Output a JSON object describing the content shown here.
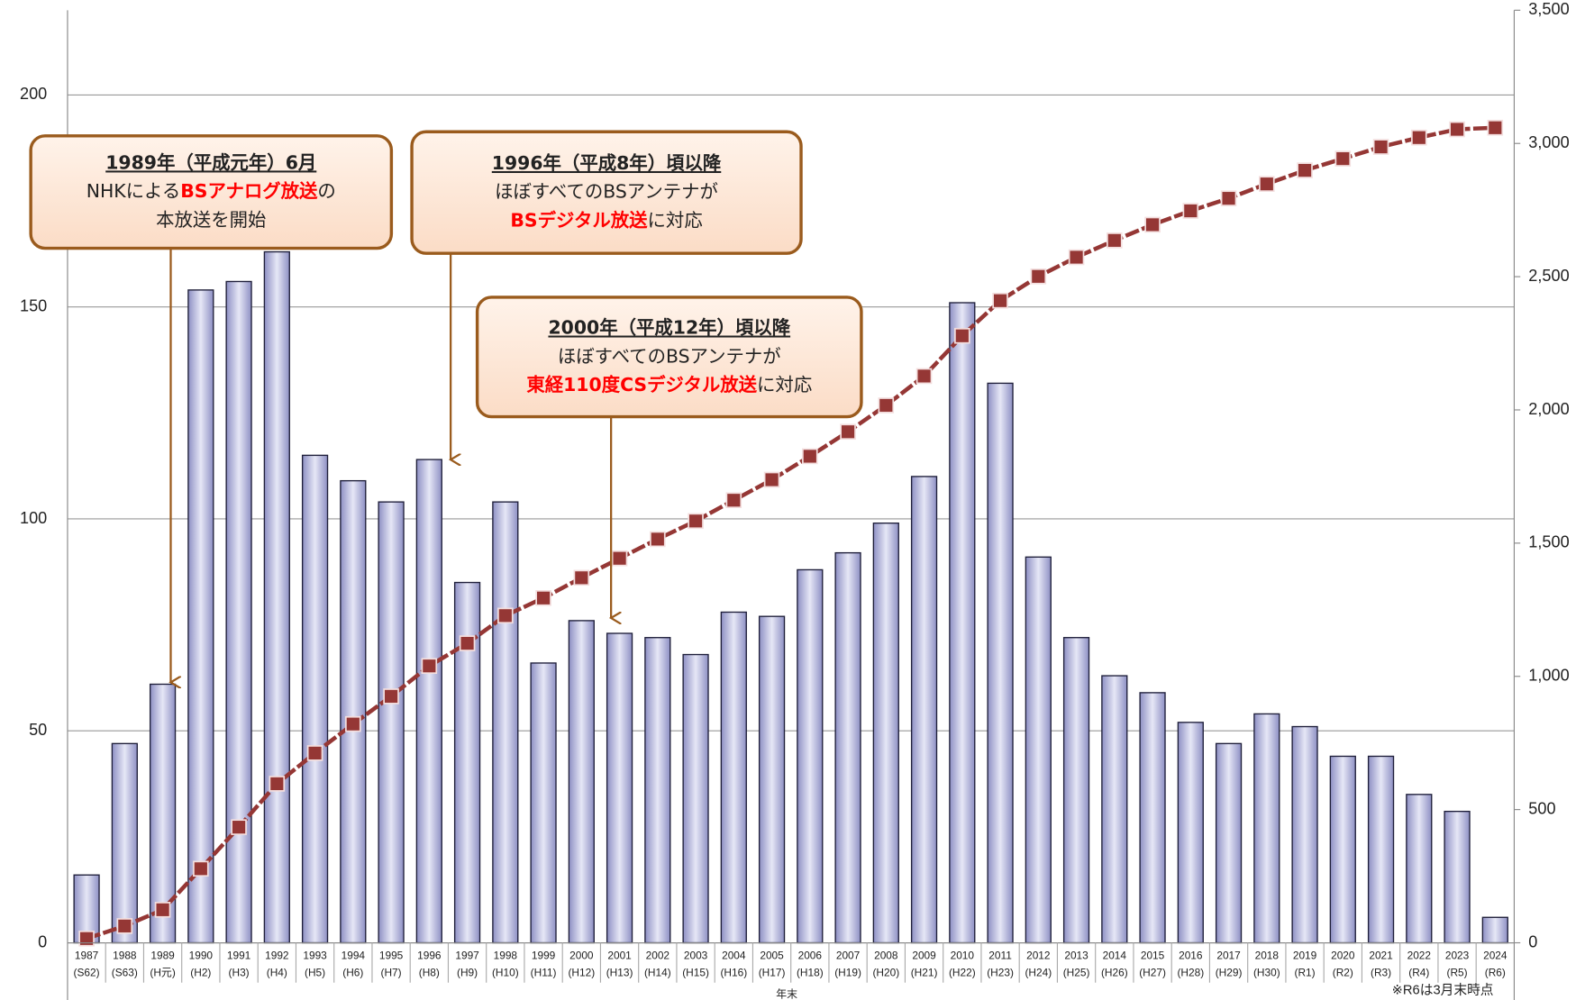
{
  "chart_data": {
    "type": "bar",
    "categories": [
      [
        "1987",
        "(S62)"
      ],
      [
        "1988",
        "(S63)"
      ],
      [
        "1989",
        "(H元)"
      ],
      [
        "1990",
        "(H2)"
      ],
      [
        "1991",
        "(H3)"
      ],
      [
        "1992",
        "(H4)"
      ],
      [
        "1993",
        "(H5)"
      ],
      [
        "1994",
        "(H6)"
      ],
      [
        "1995",
        "(H7)"
      ],
      [
        "1996",
        "(H8)"
      ],
      [
        "1997",
        "(H9)"
      ],
      [
        "1998",
        "(H10)"
      ],
      [
        "1999",
        "(H11)"
      ],
      [
        "2000",
        "(H12)"
      ],
      [
        "2001",
        "(H13)"
      ],
      [
        "2002",
        "(H14)"
      ],
      [
        "2003",
        "(H15)"
      ],
      [
        "2004",
        "(H16)"
      ],
      [
        "2005",
        "(H17)"
      ],
      [
        "2006",
        "(H18)"
      ],
      [
        "2007",
        "(H19)"
      ],
      [
        "2008",
        "(H20)"
      ],
      [
        "2009",
        "(H21)"
      ],
      [
        "2010",
        "(H22)"
      ],
      [
        "2011",
        "(H23)"
      ],
      [
        "2012",
        "(H24)"
      ],
      [
        "2013",
        "(H25)"
      ],
      [
        "2014",
        "(H26)"
      ],
      [
        "2015",
        "(H27)"
      ],
      [
        "2016",
        "(H28)"
      ],
      [
        "2017",
        "(H29)"
      ],
      [
        "2018",
        "(H30)"
      ],
      [
        "2019",
        "(R1)"
      ],
      [
        "2020",
        "(R2)"
      ],
      [
        "2021",
        "(R3)"
      ],
      [
        "2022",
        "(R4)"
      ],
      [
        "2023",
        "(R5)"
      ],
      [
        "2024",
        "(R6)"
      ]
    ],
    "series": [
      {
        "type": "bar",
        "color": "#b3b5dc",
        "values": [
          16,
          47,
          61,
          154,
          156,
          163,
          115,
          109,
          104,
          114,
          85,
          104,
          66,
          76,
          73,
          72,
          68,
          78,
          77,
          88,
          92,
          99,
          110,
          151,
          132,
          91,
          72,
          63,
          59,
          52,
          47,
          54,
          51,
          44,
          44,
          35,
          31,
          6
        ]
      },
      {
        "type": "line",
        "axis": "y2",
        "color": "#953735",
        "values": [
          16,
          63,
          124,
          278,
          434,
          597,
          712,
          821,
          925,
          1039,
          1124,
          1228,
          1294,
          1370,
          1443,
          1515,
          1583,
          1661,
          1738,
          1826,
          1918,
          2017,
          2127,
          2278,
          2410,
          2501,
          2573,
          2636,
          2695,
          2747,
          2794,
          2848,
          2899,
          2943,
          2987,
          3022,
          3053,
          3059
        ]
      }
    ],
    "ylim": [
      0,
      220
    ],
    "yticks": [
      0,
      50,
      100,
      150,
      200
    ],
    "y2lim": [
      0,
      3500
    ],
    "y2ticks": [
      0,
      500,
      {
        "value": 1000,
        "label": "1,000"
      },
      {
        "value": 1500,
        "label": "1,500"
      },
      {
        "value": 2000,
        "label": "2,000"
      },
      {
        "value": 2500,
        "label": "2,500"
      },
      {
        "value": 3000,
        "label": "3,000"
      },
      {
        "value": 3500,
        "label": "3,500"
      }
    ],
    "grid": true,
    "xlabel": "年末",
    "note": "※R6は3月末時点",
    "annotations": [
      {
        "lines": [
          [
            {
              "text": "1989年（平成元年）6月"
            }
          ],
          [
            {
              "text": "NHKによる"
            },
            {
              "text": "BSアナログ放送",
              "color": "#ff0000"
            },
            {
              "text": "の"
            }
          ],
          [
            {
              "text": "本放送を開始"
            }
          ]
        ]
      },
      {
        "lines": [
          [
            {
              "text": "1996年（平成8年）頃以降"
            }
          ],
          [
            {
              "text": "ほぼすべてのBSアンテナが"
            }
          ],
          [
            {
              "text": "BSデジタル放送",
              "color": "#ff0000"
            },
            {
              "text": "に対応"
            }
          ]
        ]
      },
      {
        "lines": [
          [
            {
              "text": "2000年（平成12年）頃以降"
            }
          ],
          [
            {
              "text": "ほぼすべてのBSアンテナが"
            }
          ],
          [
            {
              "text": "東経110度CSデジタル放送",
              "color": "#ff0000"
            },
            {
              "text": "に対応"
            }
          ]
        ]
      }
    ]
  }
}
